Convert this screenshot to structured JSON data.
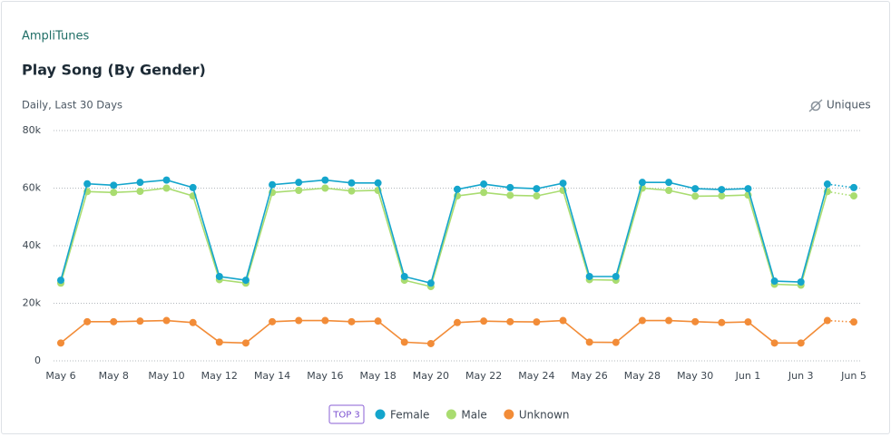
{
  "app": "AmpliTunes",
  "metric_toggle": "Uniques",
  "legend_badge": "TOP 3",
  "chart_data": {
    "type": "line",
    "title": "Play Song (By Gender)",
    "subtitle": "Daily, Last 30 Days",
    "categories": [
      "May 6",
      null,
      "May 8",
      null,
      "May 10",
      null,
      "May 12",
      null,
      "May 14",
      null,
      "May 16",
      null,
      "May 18",
      null,
      "May 20",
      null,
      "May 22",
      null,
      "May 24",
      null,
      "May 26",
      null,
      "May 28",
      null,
      "May 30",
      null,
      "Jun 1",
      null,
      "Jun 3",
      null,
      "Jun 5"
    ],
    "series": [
      {
        "name": "Female",
        "color": "#14a5cc",
        "values": [
          28000,
          61500,
          61000,
          62000,
          62800,
          60200,
          29300,
          28000,
          61200,
          62000,
          62800,
          61800,
          61800,
          29300,
          27000,
          59600,
          61400,
          60200,
          59800,
          61700,
          29300,
          29300,
          62000,
          62000,
          59800,
          59500,
          59800,
          27700,
          27400,
          61400,
          60200
        ]
      },
      {
        "name": "Male",
        "color": "#a9dc70",
        "values": [
          27000,
          58800,
          58500,
          58900,
          60000,
          57300,
          28200,
          27000,
          58500,
          59200,
          60000,
          59000,
          59200,
          28000,
          25800,
          57300,
          58500,
          57500,
          57300,
          59200,
          28200,
          28000,
          60000,
          59200,
          57200,
          57300,
          57600,
          26600,
          26300,
          58800,
          57300
        ]
      },
      {
        "name": "Unknown",
        "color": "#f28c38",
        "values": [
          6200,
          13600,
          13600,
          13800,
          14000,
          13300,
          6500,
          6200,
          13600,
          14000,
          14000,
          13600,
          13800,
          6500,
          6000,
          13300,
          13800,
          13600,
          13500,
          14000,
          6500,
          6400,
          14000,
          14000,
          13600,
          13300,
          13500,
          6200,
          6200,
          14000,
          13500
        ]
      }
    ],
    "ylim": [
      0,
      80000
    ],
    "yticks": [
      0,
      {
        "value": 20000,
        "label": "20k"
      },
      {
        "value": 40000,
        "label": "40k"
      },
      {
        "value": 60000,
        "label": "60k"
      },
      {
        "value": 80000,
        "label": "80k"
      }
    ],
    "grid": true
  }
}
